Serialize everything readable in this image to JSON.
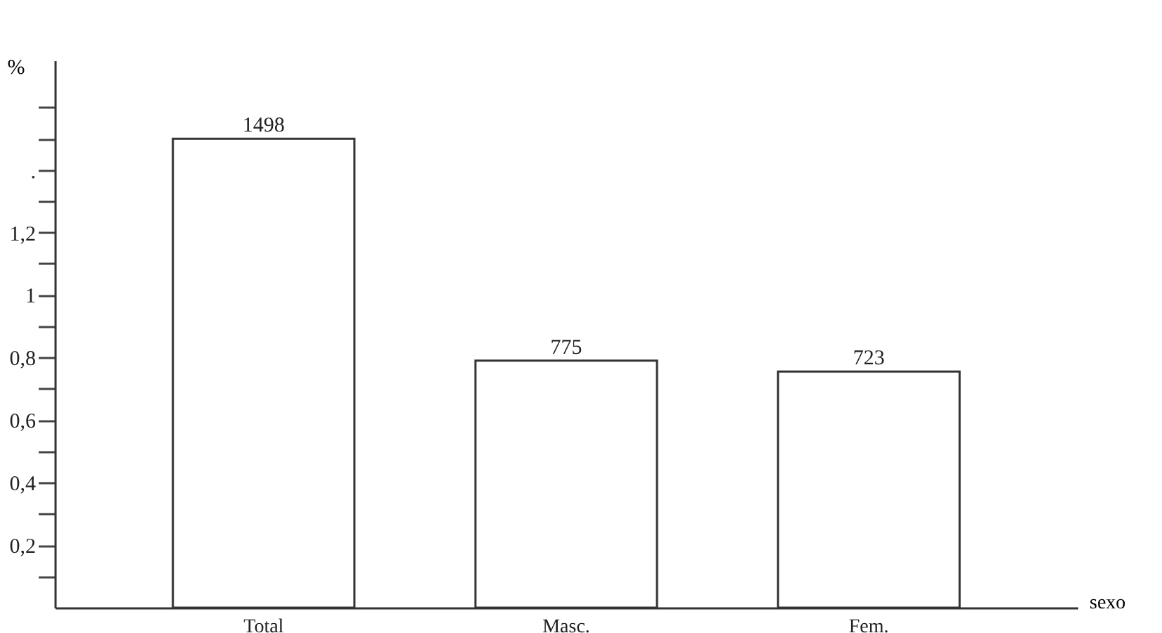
{
  "chart_data": {
    "type": "bar",
    "xlabel": "sexo",
    "ylabel": "%",
    "categories": [
      "Total",
      "Masc.",
      "Fem."
    ],
    "values": [
      1.5,
      0.79,
      0.755
    ],
    "annotations": [
      {
        "text": "1498",
        "x": "Total",
        "y": 1.5
      },
      {
        "text": "775",
        "x": "Masc.",
        "y": 0.79
      },
      {
        "text": "723",
        "x": "Fem.",
        "y": 0.755
      }
    ],
    "color": "#ffffff",
    "ylim": [
      0,
      1.75
    ],
    "yticks": [
      {
        "value": 0.1,
        "label": null
      },
      {
        "value": 0.2,
        "label": "0,2"
      },
      {
        "value": 0.3,
        "label": null
      },
      {
        "value": 0.4,
        "label": "0,4"
      },
      {
        "value": 0.5,
        "label": null
      },
      {
        "value": 0.6,
        "label": "0,6"
      },
      {
        "value": 0.7,
        "label": null
      },
      {
        "value": 0.8,
        "label": "0,8"
      },
      {
        "value": 0.9,
        "label": null
      },
      {
        "value": 1,
        "label": "1"
      },
      {
        "value": 1.1,
        "label": null
      },
      {
        "value": 1.2,
        "label": "1,2"
      },
      {
        "value": 1.3,
        "label": null
      },
      {
        "value": 1.4,
        "label": "."
      },
      {
        "value": 1.5,
        "label": null
      },
      {
        "value": 1.6,
        "label": null
      }
    ],
    "grid": false
  }
}
